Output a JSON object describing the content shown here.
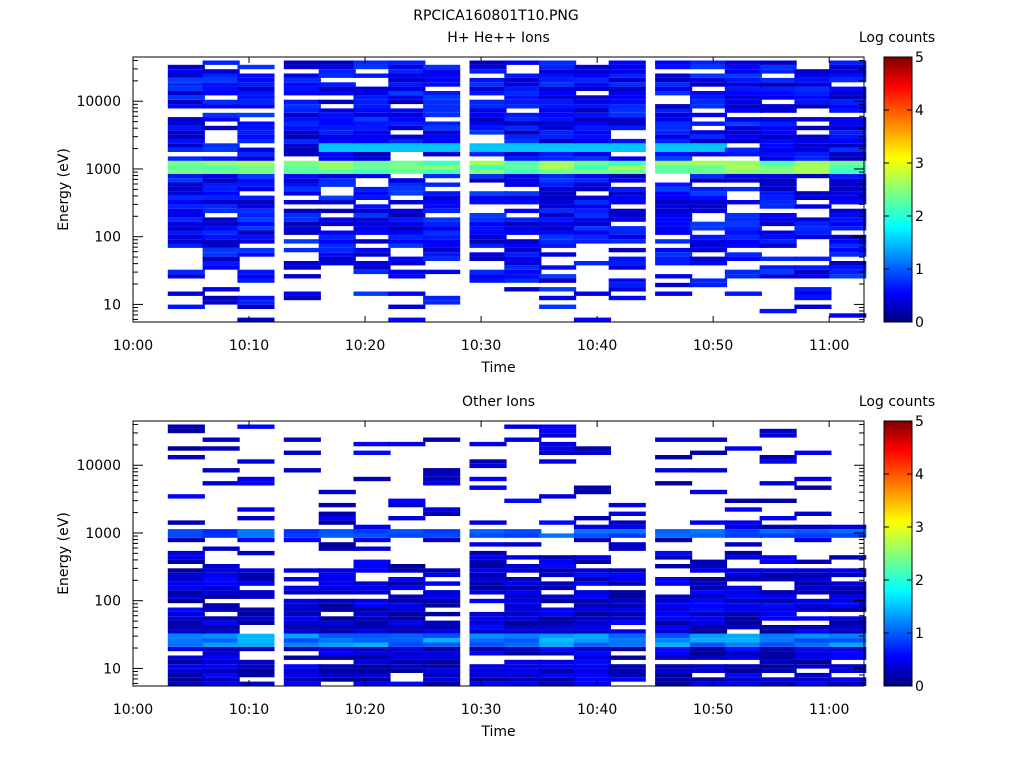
{
  "figure_title": "RPCICA160801T10.PNG",
  "chart_data": [
    {
      "type": "heatmap",
      "title": "H+ He++ Ions",
      "xlabel": "Time",
      "ylabel": "Energy (eV)",
      "x_ticks": [
        "10:00",
        "10:10",
        "10:20",
        "10:30",
        "10:40",
        "10:50",
        "11:00"
      ],
      "x_range": [
        "10:00",
        "11:03"
      ],
      "y_scale": "log",
      "y_ticks": [
        "10",
        "100",
        "1000",
        "10000"
      ],
      "y_range": [
        5.5,
        45000
      ],
      "colorbar": {
        "label": "Log counts",
        "ticks": [
          "0",
          "1",
          "2",
          "3",
          "4",
          "5"
        ],
        "range": [
          0,
          5
        ],
        "colormap": "jet"
      },
      "time_bins": [
        "10:03",
        "10:06",
        "10:09",
        "10:13",
        "10:16",
        "10:19",
        "10:22",
        "10:25",
        "10:29",
        "10:32",
        "10:35",
        "10:38",
        "10:41",
        "10:45",
        "10:48",
        "10:51",
        "10:54",
        "10:57",
        "11:00"
      ],
      "dominant_features": [
        {
          "energy_eV": 1000,
          "log_counts": 2.7,
          "note": "persistent band"
        },
        {
          "energy_eV": 2000,
          "log_counts": 1.5,
          "note": "band 10:16–10:48"
        }
      ],
      "seed": 17,
      "hi_cutoff_eV": 40000,
      "density_profile": "upper"
    },
    {
      "type": "heatmap",
      "title": "Other Ions",
      "xlabel": "Time",
      "ylabel": "Energy (eV)",
      "x_ticks": [
        "10:00",
        "10:10",
        "10:20",
        "10:30",
        "10:40",
        "10:50",
        "11:00"
      ],
      "x_range": [
        "10:00",
        "11:03"
      ],
      "y_scale": "log",
      "y_ticks": [
        "10",
        "100",
        "1000",
        "10000"
      ],
      "y_range": [
        5.5,
        45000
      ],
      "colorbar": {
        "label": "Log counts",
        "ticks": [
          "0",
          "1",
          "2",
          "3",
          "4",
          "5"
        ],
        "range": [
          0,
          5
        ],
        "colormap": "jet"
      },
      "time_bins": [
        "10:03",
        "10:06",
        "10:09",
        "10:13",
        "10:16",
        "10:19",
        "10:22",
        "10:25",
        "10:29",
        "10:32",
        "10:35",
        "10:38",
        "10:41",
        "10:45",
        "10:48",
        "10:51",
        "10:54",
        "10:57",
        "11:00"
      ],
      "dominant_features": [
        {
          "energy_eV": 1000,
          "log_counts": 0.6,
          "note": "band"
        },
        {
          "energy_eV": 28,
          "log_counts": 1.2,
          "note": "low-energy band"
        }
      ],
      "seed": 91,
      "hi_cutoff_eV": 40000,
      "density_profile": "lower"
    }
  ]
}
